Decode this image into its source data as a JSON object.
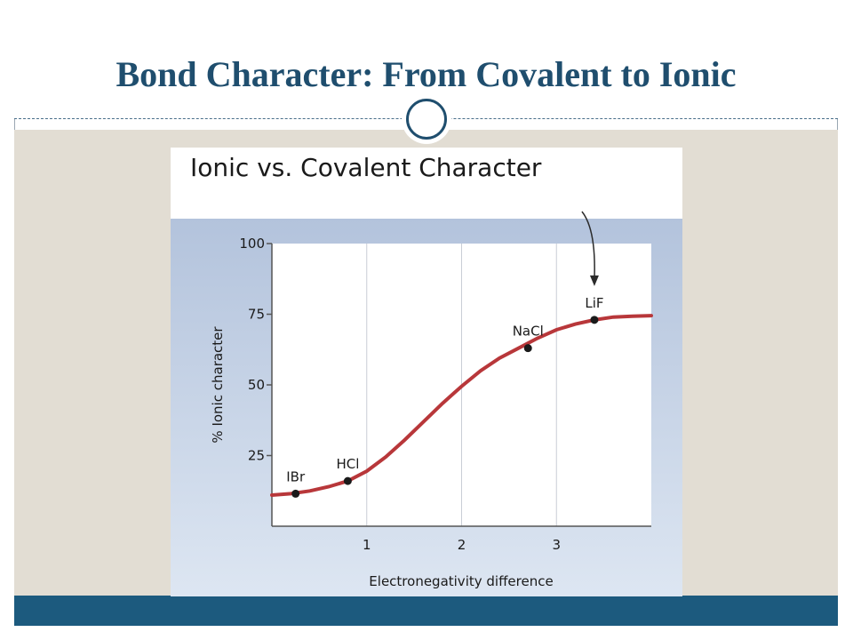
{
  "slide": {
    "title": "Bond Character: From Covalent to Ionic"
  },
  "colors": {
    "title": "#1f4e6e",
    "content_bg": "#e2ddd3",
    "bottom_bar": "#1c5a7e",
    "curve": "#b8373a",
    "plot_bg_top": "#b3c3dc",
    "plot_bg_bottom": "#dde6f2"
  },
  "chart_data": {
    "type": "line",
    "title": "Ionic vs. Covalent Character",
    "xlabel": "Electronegativity difference",
    "ylabel": "% Ionic character",
    "xlim": [
      0,
      4
    ],
    "ylim": [
      0,
      100
    ],
    "x_ticks": [
      1,
      2,
      3
    ],
    "y_ticks": [
      25,
      50,
      75,
      100
    ],
    "grid": "vertical",
    "curve": {
      "x": [
        0,
        0.2,
        0.4,
        0.6,
        0.8,
        1.0,
        1.2,
        1.4,
        1.6,
        1.8,
        2.0,
        2.2,
        2.4,
        2.6,
        2.8,
        3.0,
        3.2,
        3.4,
        3.6,
        3.8,
        4.0
      ],
      "y": [
        11,
        11.5,
        12.5,
        14,
        16,
        19.5,
        24.5,
        30.5,
        37,
        43.5,
        49.5,
        55,
        59.5,
        63,
        66.5,
        69.5,
        71.5,
        73,
        74,
        74.3,
        74.5
      ]
    },
    "points": [
      {
        "label": "IBr",
        "x": 0.25,
        "y": 11.5
      },
      {
        "label": "HCl",
        "x": 0.8,
        "y": 16
      },
      {
        "label": "NaCl",
        "x": 2.7,
        "y": 63
      },
      {
        "label": "LiF",
        "x": 3.4,
        "y": 73
      }
    ],
    "annotation": {
      "type": "arrow",
      "target": "LiF"
    }
  }
}
